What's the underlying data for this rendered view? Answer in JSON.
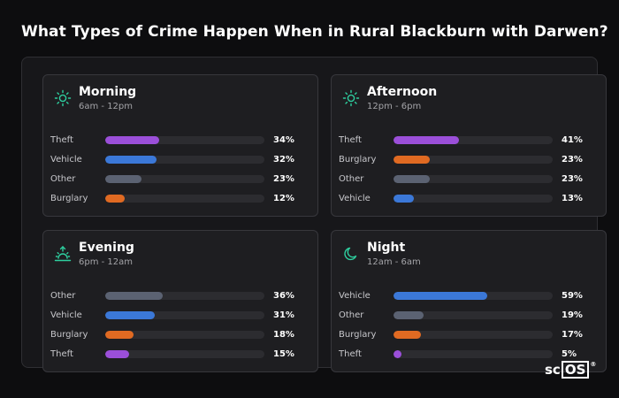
{
  "title": "What Types of Crime Happen When in Rural Blackburn with Darwen?",
  "colors": {
    "Theft": "#9b4fd9",
    "Vehicle": "#3b78d8",
    "Other": "#5b6272",
    "Burglary": "#e06a22",
    "icon": "#2ecf9f"
  },
  "cards": [
    {
      "name": "Morning",
      "time": "6am - 12pm",
      "icon": "sun-icon",
      "rows": [
        {
          "label": "Theft",
          "value": 34,
          "display": "34%"
        },
        {
          "label": "Vehicle",
          "value": 32,
          "display": "32%"
        },
        {
          "label": "Other",
          "value": 23,
          "display": "23%"
        },
        {
          "label": "Burglary",
          "value": 12,
          "display": "12%"
        }
      ]
    },
    {
      "name": "Afternoon",
      "time": "12pm - 6pm",
      "icon": "sun-icon",
      "rows": [
        {
          "label": "Theft",
          "value": 41,
          "display": "41%"
        },
        {
          "label": "Burglary",
          "value": 23,
          "display": "23%"
        },
        {
          "label": "Other",
          "value": 23,
          "display": "23%"
        },
        {
          "label": "Vehicle",
          "value": 13,
          "display": "13%"
        }
      ]
    },
    {
      "name": "Evening",
      "time": "6pm - 12am",
      "icon": "sunset-icon",
      "rows": [
        {
          "label": "Other",
          "value": 36,
          "display": "36%"
        },
        {
          "label": "Vehicle",
          "value": 31,
          "display": "31%"
        },
        {
          "label": "Burglary",
          "value": 18,
          "display": "18%"
        },
        {
          "label": "Theft",
          "value": 15,
          "display": "15%"
        }
      ]
    },
    {
      "name": "Night",
      "time": "12am - 6am",
      "icon": "moon-icon",
      "rows": [
        {
          "label": "Vehicle",
          "value": 59,
          "display": "59%"
        },
        {
          "label": "Other",
          "value": 19,
          "display": "19%"
        },
        {
          "label": "Burglary",
          "value": 17,
          "display": "17%"
        },
        {
          "label": "Theft",
          "value": 5,
          "display": "5%"
        }
      ]
    }
  ],
  "logo": {
    "prefix": "sc",
    "boxed": "OS",
    "mark": "®"
  }
}
